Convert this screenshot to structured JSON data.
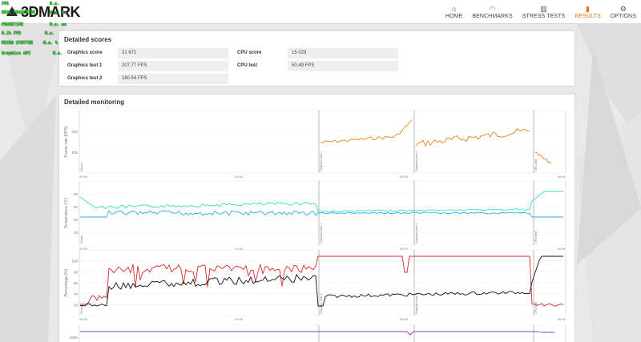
{
  "app": {
    "logo_text": "3DMARK",
    "nav": [
      {
        "label": "HOME",
        "icon": "home-icon",
        "glyph": "⌂"
      },
      {
        "label": "BENCHMARKS",
        "icon": "gauge-icon",
        "glyph": "◠"
      },
      {
        "label": "STRESS TESTS",
        "icon": "bars-icon",
        "glyph": "▥"
      },
      {
        "label": "RESULTS",
        "icon": "results-icon",
        "glyph": "▮"
      },
      {
        "label": "OPTIONS",
        "icon": "gear-icon",
        "glyph": "⚙"
      }
    ],
    "accent": "#e8730c"
  },
  "osd": {
    "rows": [
      {
        "label": "FPS",
        "value": "N.a."
      },
      {
        "label": "REAL FRAMETIME",
        "value": "N.a. ms"
      },
      {
        "label": "FRAMETIME",
        "value": "N.a. ms"
      },
      {
        "label": "0.1% FPS",
        "value": "N.a."
      },
      {
        "label": "MICRO STUTTER",
        "value": "N.a. %"
      },
      {
        "label": "Graphics API",
        "value": "N.a."
      }
    ]
  },
  "scores": {
    "title": "Detailed scores",
    "graphics_score_label": "Graphics score",
    "graphics_score_value": "31 671",
    "graphics_test_1_label": "Graphics test 1",
    "graphics_test_1_value": "207.77 FPS",
    "graphics_test_2_label": "Graphics test 2",
    "graphics_test_2_value": "180.54 FPS",
    "cpu_score_label": "CPU score",
    "cpu_score_value": "15 029",
    "cpu_test_label": "CPU test",
    "cpu_test_value": "50.49 FPS"
  },
  "monitoring": {
    "title": "Detailed monitoring",
    "x_ticks": [
      "00:00",
      "01:40",
      "03:20",
      "05:00"
    ],
    "segment_labels": [
      "Demo",
      "Graphics test 1",
      "Graphics test 2",
      "CPU test"
    ],
    "charts": [
      {
        "ylabel": "Frame rate (FPS)",
        "ticks": [
          "200",
          "100"
        ],
        "colors": {
          "fps": "#f07f1e"
        }
      },
      {
        "ylabel": "Temperature (°C)",
        "ticks": [
          "80",
          "60",
          "40",
          "20"
        ],
        "colors": {
          "gpu": "#2fe0c0",
          "cpu": "#2aa9e6"
        }
      },
      {
        "ylabel": "Percentage (%)",
        "ticks": [
          "100",
          "80",
          "60",
          "40",
          "20"
        ],
        "colors": {
          "gpu_load": "#d92b2b",
          "cpu_load": "#111111"
        }
      },
      {
        "ylabel": "",
        "ticks": [
          "2000"
        ],
        "colors": {
          "clock": "#8a3fc7"
        }
      }
    ]
  }
}
